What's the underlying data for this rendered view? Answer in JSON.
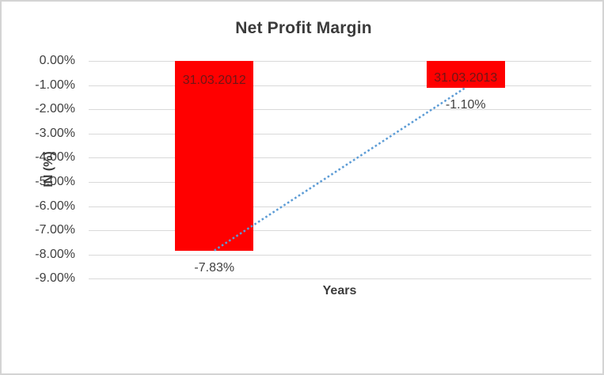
{
  "chart_data": {
    "type": "bar",
    "title": "Net Profit Margin",
    "xlabel": "Years",
    "ylabel": "IN (%)",
    "categories": [
      "31.03.2012",
      "31.03.2013"
    ],
    "series": [
      {
        "name": "Net Profit Margin",
        "values": [
          -7.83,
          -1.1
        ]
      }
    ],
    "value_labels": [
      "-7.83%",
      "-1.10%"
    ],
    "y_tick_labels": [
      "0.00%",
      "-1.00%",
      "-2.00%",
      "-3.00%",
      "-4.00%",
      "-5.00%",
      "-6.00%",
      "-7.00%",
      "-8.00%",
      "-9.00%"
    ],
    "y_tick_values": [
      0,
      -1,
      -2,
      -3,
      -4,
      -5,
      -6,
      -7,
      -8,
      -9
    ],
    "ylim": [
      -9,
      0
    ],
    "grid": true,
    "legend": false,
    "category_labels_inside_bars": true,
    "trendline": {
      "type": "linear",
      "style": "dotted",
      "from": [
        0,
        -7.83
      ],
      "to": [
        1,
        -1.1
      ]
    }
  },
  "colors": {
    "bar": "#FF0000",
    "bar_label": "#6e1616",
    "trendline": "#5B9BD5",
    "gridline": "#D9D9D9",
    "text": "#404040",
    "title": "#3B3B3B",
    "frame_border": "#D4D4D4",
    "background": "#FFFFFF"
  }
}
